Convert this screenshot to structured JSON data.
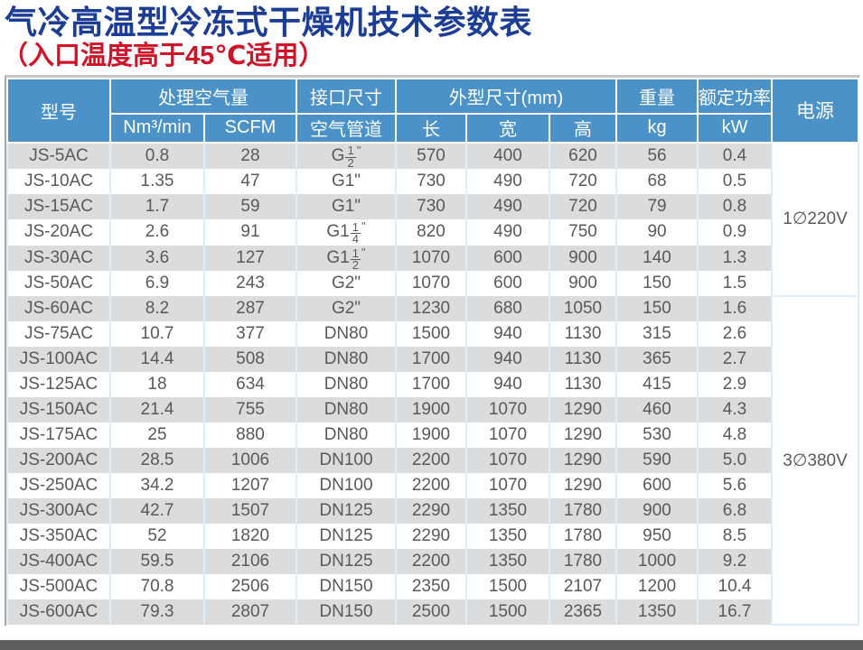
{
  "header": {
    "title": "气冷高温型冷冻式干燥机技术参数表",
    "subtitle": "（入口温度高于45℃适用）"
  },
  "colors": {
    "title_blue": "#1c3d96",
    "subtitle_red": "#d01327",
    "header_blue": "#4a92c8",
    "row_stripe_gray": "#dcdcdc",
    "grid_light_blue": "#ddeefa",
    "body_text_gray": "#595959",
    "bottom_bar_gray": "#5e5e5e"
  },
  "table": {
    "columns": {
      "model": "型号",
      "capacity_group": "处理空气量",
      "capacity_sub": [
        "Nm³/min",
        "SCFM"
      ],
      "port_group": "接口尺寸",
      "port_sub": "空气管道",
      "dims_group": "外型尺寸(mm)",
      "dims_sub": [
        "长",
        "宽",
        "高"
      ],
      "weight_group": "重量",
      "weight_sub": "kg",
      "rated_power_group": "额定功率",
      "rated_power_sub": "kW",
      "supply": "电源"
    },
    "rows": [
      {
        "model": "JS-5AC",
        "nm3": "0.8",
        "scfm": "28",
        "pipe": {
          "text": "G",
          "num": "1",
          "den": "2",
          "quote": true
        },
        "len": "570",
        "wid": "400",
        "hgt": "620",
        "kg": "56",
        "kw": "0.4"
      },
      {
        "model": "JS-10AC",
        "nm3": "1.35",
        "scfm": "47",
        "pipe": {
          "text": "G1",
          "quote": true
        },
        "len": "730",
        "wid": "490",
        "hgt": "720",
        "kg": "68",
        "kw": "0.5"
      },
      {
        "model": "JS-15AC",
        "nm3": "1.7",
        "scfm": "59",
        "pipe": {
          "text": "G1",
          "quote": true
        },
        "len": "730",
        "wid": "490",
        "hgt": "720",
        "kg": "79",
        "kw": "0.8"
      },
      {
        "model": "JS-20AC",
        "nm3": "2.6",
        "scfm": "91",
        "pipe": {
          "text": "G1",
          "num": "1",
          "den": "4",
          "quote": true
        },
        "len": "820",
        "wid": "490",
        "hgt": "750",
        "kg": "90",
        "kw": "0.9"
      },
      {
        "model": "JS-30AC",
        "nm3": "3.6",
        "scfm": "127",
        "pipe": {
          "text": "G1",
          "num": "1",
          "den": "2",
          "quote": true
        },
        "len": "1070",
        "wid": "600",
        "hgt": "900",
        "kg": "140",
        "kw": "1.3"
      },
      {
        "model": "JS-50AC",
        "nm3": "6.9",
        "scfm": "243",
        "pipe": {
          "text": "G2",
          "quote": true
        },
        "len": "1070",
        "wid": "600",
        "hgt": "900",
        "kg": "150",
        "kw": "1.5"
      },
      {
        "model": "JS-60AC",
        "nm3": "8.2",
        "scfm": "287",
        "pipe": {
          "text": "G2",
          "quote": true
        },
        "len": "1230",
        "wid": "680",
        "hgt": "1050",
        "kg": "150",
        "kw": "1.6"
      },
      {
        "model": "JS-75AC",
        "nm3": "10.7",
        "scfm": "377",
        "pipe": {
          "text": "DN80"
        },
        "len": "1500",
        "wid": "940",
        "hgt": "1130",
        "kg": "315",
        "kw": "2.6"
      },
      {
        "model": "JS-100AC",
        "nm3": "14.4",
        "scfm": "508",
        "pipe": {
          "text": "DN80"
        },
        "len": "1700",
        "wid": "940",
        "hgt": "1130",
        "kg": "365",
        "kw": "2.7"
      },
      {
        "model": "JS-125AC",
        "nm3": "18",
        "scfm": "634",
        "pipe": {
          "text": "DN80"
        },
        "len": "1700",
        "wid": "940",
        "hgt": "1130",
        "kg": "415",
        "kw": "2.9"
      },
      {
        "model": "JS-150AC",
        "nm3": "21.4",
        "scfm": "755",
        "pipe": {
          "text": "DN80"
        },
        "len": "1900",
        "wid": "1070",
        "hgt": "1290",
        "kg": "460",
        "kw": "4.3"
      },
      {
        "model": "JS-175AC",
        "nm3": "25",
        "scfm": "880",
        "pipe": {
          "text": "DN80"
        },
        "len": "1900",
        "wid": "1070",
        "hgt": "1290",
        "kg": "530",
        "kw": "4.8"
      },
      {
        "model": "JS-200AC",
        "nm3": "28.5",
        "scfm": "1006",
        "pipe": {
          "text": "DN100"
        },
        "len": "2200",
        "wid": "1070",
        "hgt": "1290",
        "kg": "590",
        "kw": "5.0"
      },
      {
        "model": "JS-250AC",
        "nm3": "34.2",
        "scfm": "1207",
        "pipe": {
          "text": "DN100"
        },
        "len": "2200",
        "wid": "1070",
        "hgt": "1290",
        "kg": "600",
        "kw": "5.6"
      },
      {
        "model": "JS-300AC",
        "nm3": "42.7",
        "scfm": "1507",
        "pipe": {
          "text": "DN125"
        },
        "len": "2290",
        "wid": "1350",
        "hgt": "1780",
        "kg": "900",
        "kw": "6.8"
      },
      {
        "model": "JS-350AC",
        "nm3": "52",
        "scfm": "1820",
        "pipe": {
          "text": "DN125"
        },
        "len": "2290",
        "wid": "1350",
        "hgt": "1780",
        "kg": "950",
        "kw": "8.5"
      },
      {
        "model": "JS-400AC",
        "nm3": "59.5",
        "scfm": "2106",
        "pipe": {
          "text": "DN125"
        },
        "len": "2200",
        "wid": "1350",
        "hgt": "1780",
        "kg": "1000",
        "kw": "9.2"
      },
      {
        "model": "JS-500AC",
        "nm3": "70.8",
        "scfm": "2506",
        "pipe": {
          "text": "DN150"
        },
        "len": "2350",
        "wid": "1500",
        "hgt": "2107",
        "kg": "1200",
        "kw": "10.4"
      },
      {
        "model": "JS-600AC",
        "nm3": "79.3",
        "scfm": "2807",
        "pipe": {
          "text": "DN150"
        },
        "len": "2500",
        "wid": "1500",
        "hgt": "2365",
        "kg": "1350",
        "kw": "16.7"
      }
    ],
    "supply_groups": [
      {
        "label": "1∅220V",
        "rows": 6
      },
      {
        "label": "3∅380V",
        "rows": 13
      }
    ]
  }
}
